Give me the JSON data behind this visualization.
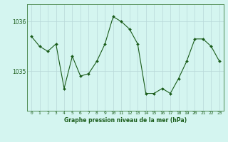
{
  "x": [
    0,
    1,
    2,
    3,
    4,
    5,
    6,
    7,
    8,
    9,
    10,
    11,
    12,
    13,
    14,
    15,
    16,
    17,
    18,
    19,
    20,
    21,
    22,
    23
  ],
  "y": [
    1035.7,
    1035.5,
    1035.4,
    1035.55,
    1034.65,
    1035.3,
    1034.9,
    1034.95,
    1035.2,
    1035.55,
    1036.1,
    1036.0,
    1035.85,
    1035.55,
    1034.55,
    1034.55,
    1034.65,
    1034.55,
    1034.85,
    1035.2,
    1035.65,
    1035.65,
    1035.5,
    1035.2
  ],
  "line_color": "#1a5c1a",
  "marker_color": "#1a5c1a",
  "bg_color": "#d4f5f0",
  "grid_color": "#b8d8d8",
  "xlabel": "Graphe pression niveau de la mer (hPa)",
  "xlabel_color": "#1a5c1a",
  "tick_color": "#1a5c1a",
  "ylim": [
    1034.2,
    1036.35
  ],
  "yticks": [
    1035,
    1036
  ],
  "xlim": [
    -0.5,
    23.5
  ],
  "axis_color": "#3a7a3a"
}
